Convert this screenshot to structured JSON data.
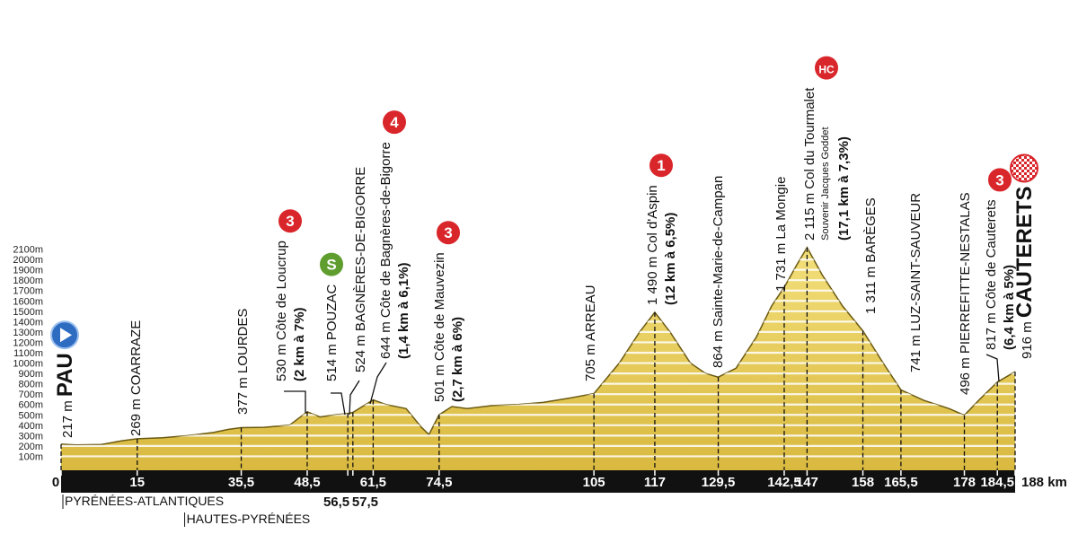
{
  "chart_data": {
    "type": "area",
    "color": "#e8cf5c",
    "xlim": [
      0,
      188
    ],
    "ylim": [
      0,
      2200
    ],
    "grid": true,
    "x": [
      0,
      3,
      8,
      12,
      15,
      20,
      25,
      30,
      33,
      35.5,
      40,
      45,
      48.5,
      51,
      54,
      56.5,
      57.5,
      61.5,
      64,
      68,
      71,
      72.5,
      74.5,
      77,
      80,
      85,
      90,
      95,
      100,
      105,
      110,
      114,
      117,
      120,
      124,
      127,
      129.5,
      133,
      137,
      140,
      142.5,
      145,
      147,
      150,
      154,
      158,
      162,
      165.5,
      170,
      175,
      178,
      181,
      184.5,
      188
    ],
    "values": [
      217,
      210,
      215,
      250,
      269,
      280,
      300,
      330,
      360,
      377,
      380,
      400,
      530,
      480,
      500,
      514,
      524,
      644,
      600,
      560,
      380,
      310,
      501,
      580,
      560,
      590,
      600,
      620,
      660,
      705,
      1000,
      1300,
      1490,
      1300,
      1000,
      900,
      864,
      950,
      1250,
      1550,
      1731,
      1950,
      2115,
      1850,
      1550,
      1311,
      1000,
      741,
      640,
      560,
      496,
      650,
      817,
      916
    ],
    "yticks": [
      {
        "value": 100,
        "label": "100m"
      },
      {
        "value": 200,
        "label": "200m"
      },
      {
        "value": 300,
        "label": "300m"
      },
      {
        "value": 400,
        "label": "400m"
      },
      {
        "value": 500,
        "label": "500m"
      },
      {
        "value": 600,
        "label": "600m"
      },
      {
        "value": 700,
        "label": "700m"
      },
      {
        "value": 800,
        "label": "800m"
      },
      {
        "value": 900,
        "label": "900m"
      },
      {
        "value": 1000,
        "label": "1000m"
      },
      {
        "value": 1100,
        "label": "1100m"
      },
      {
        "value": 1200,
        "label": "1200m"
      },
      {
        "value": 1300,
        "label": "1300m"
      },
      {
        "value": 1400,
        "label": "1400m"
      },
      {
        "value": 1500,
        "label": "1500m"
      },
      {
        "value": 1600,
        "label": "1600m"
      },
      {
        "value": 1700,
        "label": "1700m"
      },
      {
        "value": 1800,
        "label": "1800m"
      },
      {
        "value": 1900,
        "label": "1900m"
      },
      {
        "value": 2000,
        "label": "2000m"
      },
      {
        "value": 2100,
        "label": "2100m"
      }
    ],
    "xticks": [
      0,
      15,
      {
        "value": 35.5,
        "label": "35,5"
      },
      {
        "value": 48.5,
        "label": "48,5"
      },
      {
        "value": 56.5,
        "label": "56,5"
      },
      {
        "value": 57.5,
        "label": "57,5"
      },
      {
        "value": 61.5,
        "label": "61,5"
      },
      {
        "value": 74.5,
        "label": "74,5"
      },
      105,
      117,
      {
        "value": 129.5,
        "label": "129,5"
      },
      {
        "value": 142.5,
        "label": "142,5"
      },
      147,
      158,
      {
        "value": 165.5,
        "label": "165,5"
      },
      178,
      {
        "value": 184.5,
        "label": "184,5"
      },
      {
        "value": 188,
        "label": "188 km"
      }
    ],
    "waypoints": [
      {
        "km": 0,
        "altitude": 217,
        "altitude_label": "217 m",
        "name": "PAU"
      },
      {
        "km": 15,
        "altitude": 269,
        "altitude_label": "269 m",
        "name": "COARRAZE"
      },
      {
        "km": 35.5,
        "altitude": 377,
        "altitude_label": "377 m",
        "name": "LOURDES"
      },
      {
        "km": 48.5,
        "altitude": 530,
        "altitude_label": "530 m",
        "name": "Côte de Loucrup",
        "detail": "(2 km à 7%)",
        "category": "3"
      },
      {
        "km": 56.5,
        "altitude": 514,
        "altitude_label": "514 m",
        "name": "POUZAC",
        "category": "S"
      },
      {
        "km": 57.5,
        "altitude": 524,
        "altitude_label": "524 m",
        "name": "BAGNÈRES-DE-BIGORRE"
      },
      {
        "km": 61.5,
        "altitude": 644,
        "altitude_label": "644 m",
        "name": "Côte de Bagnères-de-Bigorre",
        "detail": "(1,4 km à 6,1%)",
        "category": "4"
      },
      {
        "km": 74.5,
        "altitude": 501,
        "altitude_label": "501 m",
        "name": "Côte de Mauvezin",
        "detail": "(2,7 km à 6%)",
        "category": "3"
      },
      {
        "km": 105,
        "altitude": 705,
        "altitude_label": "705 m",
        "name": "ARREAU"
      },
      {
        "km": 117,
        "altitude": 1490,
        "altitude_label": "1 490 m",
        "name": "Col d'Aspin",
        "detail": "(12 km à 6,5%)",
        "category": "1"
      },
      {
        "km": 129.5,
        "altitude": 864,
        "altitude_label": "864 m",
        "name": "Sainte-Marie-de-Campan"
      },
      {
        "km": 142.5,
        "altitude": 1731,
        "altitude_label": "1 731 m",
        "name": "La Mongie"
      },
      {
        "km": 147,
        "altitude": 2115,
        "altitude_label": "2 115 m",
        "name": "Col du Tourmalet",
        "note": "Souvenir Jacques Goddet",
        "detail": "(17,1 km à 7,3%)",
        "category": "HC"
      },
      {
        "km": 158,
        "altitude": 1311,
        "altitude_label": "1 311 m",
        "name": "BARÈGES"
      },
      {
        "km": 165.5,
        "altitude": 741,
        "altitude_label": "741 m",
        "name": "LUZ-SAINT-SAUVEUR"
      },
      {
        "km": 178,
        "altitude": 496,
        "altitude_label": "496 m",
        "name": "PIERREFITTE-NESTALAS"
      },
      {
        "km": 184.5,
        "altitude": 817,
        "altitude_label": "817 m",
        "name": "Côte de Cauterets",
        "detail": "(6,4 km à 5%)",
        "category": "3"
      },
      {
        "km": 188,
        "altitude": 916,
        "altitude_label": "916 m",
        "name": "CAUTERETS"
      }
    ],
    "departments": [
      {
        "km": 0,
        "name": "PYRÉNÉES-ATLANTIQUES"
      },
      {
        "km": 24,
        "name": "HAUTES-PYRÉNÉES"
      }
    ]
  }
}
